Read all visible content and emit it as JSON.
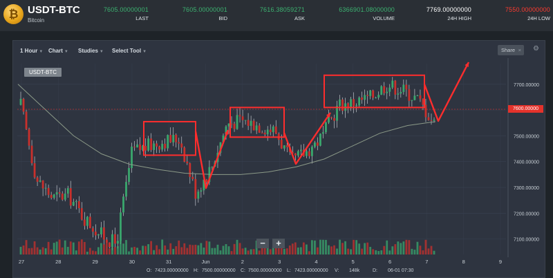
{
  "header": {
    "logo_glyph": "₿",
    "pair": "USDT-BTC",
    "subtitle": "Bitcoin",
    "stats": [
      {
        "value": "7605.00000001",
        "label": "LAST",
        "color": "#3cb371"
      },
      {
        "value": "7605.00000001",
        "label": "BID",
        "color": "#3cb371"
      },
      {
        "value": "7616.38059271",
        "label": "ASK",
        "color": "#3cb371"
      },
      {
        "value": "6366901.08000000",
        "label": "VOLUME",
        "color": "#3cb371"
      },
      {
        "value": "7769.00000000",
        "label": "24H HIGH",
        "color": "#ffffff"
      },
      {
        "value": "7550.00000000",
        "label": "24H LOW",
        "color": "#ff3b30"
      }
    ]
  },
  "toolbar": {
    "interval": "1 Hour",
    "chart": "Chart",
    "studies": "Studies",
    "select_tool": "Select Tool",
    "share": "Share",
    "share_close": "×",
    "gear_glyph": "⚙"
  },
  "chart": {
    "symbol": "USDT-BTC",
    "current_price": "7600.00000",
    "zoom_out": "−",
    "zoom_in": "+"
  },
  "ohlc": {
    "o_label": "O:",
    "o": "7423.00000000",
    "h_label": "H:",
    "h": "7500.00000000",
    "c_label": "C:",
    "c": "7500.00000000",
    "l_label": "L:",
    "l": "7423.00000000",
    "v_label": "V:",
    "v": "148k",
    "d_label": "D:",
    "d": "06-01 07:30"
  },
  "chart_data": {
    "type": "candlestick",
    "y_ticks": [
      "7700.00000",
      "7600.00000",
      "7500.00000",
      "7400.00000",
      "7300.00000",
      "7200.00000",
      "7100.00000"
    ],
    "x_ticks": [
      "27",
      "28",
      "29",
      "30",
      "31",
      "Jun",
      "2",
      "3",
      "4",
      "5",
      "6",
      "7",
      "8",
      "9"
    ],
    "ylim": [
      7040,
      7780
    ],
    "approx_close_path": [
      7620,
      7330,
      7260,
      7270,
      7180,
      7120,
      7080,
      7440,
      7460,
      7480,
      7490,
      7280,
      7380,
      7550,
      7560,
      7540,
      7520,
      7400,
      7440,
      7500,
      7620,
      7630,
      7650,
      7700,
      7680,
      7640,
      7550
    ],
    "moving_average": [
      7700,
      7600,
      7500,
      7430,
      7390,
      7370,
      7355,
      7350,
      7350,
      7360,
      7380,
      7410,
      7460,
      7510,
      7540,
      7555
    ],
    "annotation_boxes": [
      {
        "low": 7425,
        "high": 7555
      },
      {
        "low": 7495,
        "high": 7610
      },
      {
        "low": 7610,
        "high": 7735
      }
    ],
    "colors": {
      "up": "#3aa76d",
      "down": "#c9302c",
      "annotation": "#ff2d2d",
      "ma": "#8c9a88",
      "grid": "#394150"
    }
  }
}
